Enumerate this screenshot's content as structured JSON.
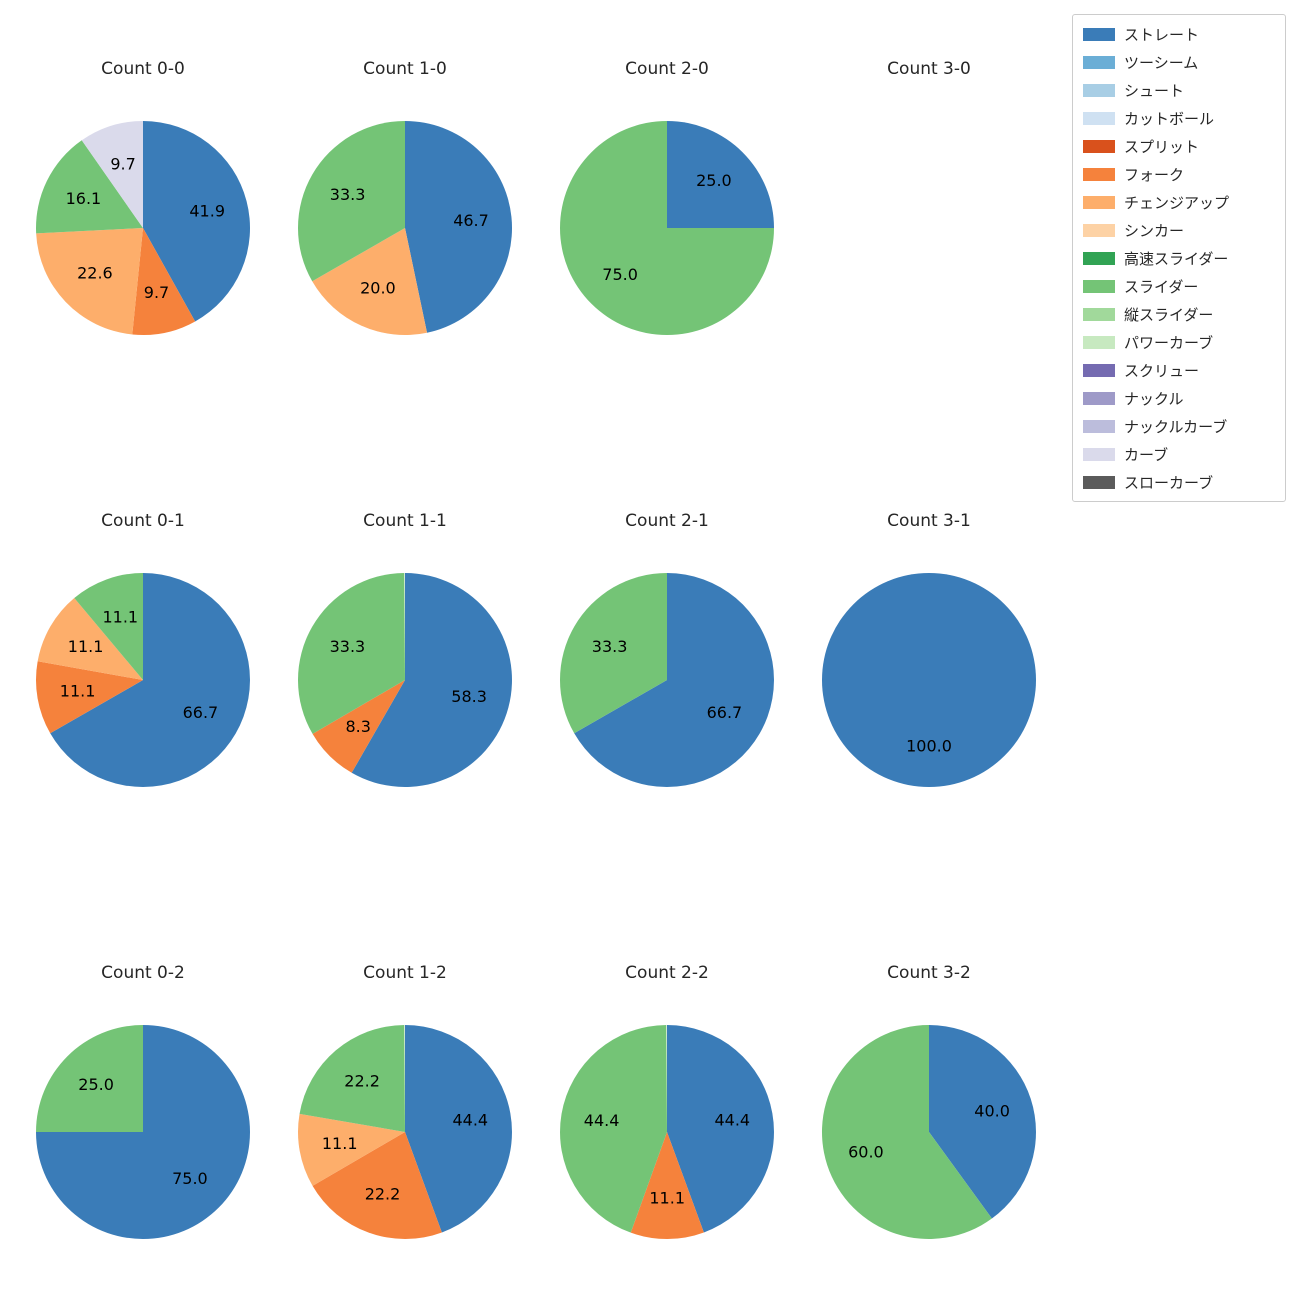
{
  "figure": {
    "background": "#ffffff"
  },
  "legend": {
    "items": [
      {
        "label": "ストレート",
        "color": "#3a7cb8"
      },
      {
        "label": "ツーシーム",
        "color": "#6baed6"
      },
      {
        "label": "シュート",
        "color": "#a8cee5"
      },
      {
        "label": "カットボール",
        "color": "#cfe1f2"
      },
      {
        "label": "スプリット",
        "color": "#d9511c"
      },
      {
        "label": "フォーク",
        "color": "#f5823c"
      },
      {
        "label": "チェンジアップ",
        "color": "#fdae6b"
      },
      {
        "label": "シンカー",
        "color": "#fdd2a5"
      },
      {
        "label": "高速スライダー",
        "color": "#31a354"
      },
      {
        "label": "スライダー",
        "color": "#74c476"
      },
      {
        "label": "縦スライダー",
        "color": "#a1d99b"
      },
      {
        "label": "パワーカーブ",
        "color": "#c7e9c0"
      },
      {
        "label": "スクリュー",
        "color": "#756bb1"
      },
      {
        "label": "ナックル",
        "color": "#9e9ac8"
      },
      {
        "label": "ナックルカーブ",
        "color": "#bcbddc"
      },
      {
        "label": "カーブ",
        "color": "#dadaeb"
      },
      {
        "label": "スローカーブ",
        "color": "#5b5b5b"
      }
    ]
  },
  "chart_data": [
    {
      "type": "pie",
      "title": "Count 0-0",
      "start_angle_deg": 90,
      "direction": "clockwise",
      "slices": [
        {
          "label": "ストレート",
          "value": 41.9
        },
        {
          "label": "フォーク",
          "value": 9.7
        },
        {
          "label": "チェンジアップ",
          "value": 22.6
        },
        {
          "label": "スライダー",
          "value": 16.1
        },
        {
          "label": "カーブ",
          "value": 9.7
        }
      ]
    },
    {
      "type": "pie",
      "title": "Count 1-0",
      "start_angle_deg": 90,
      "direction": "clockwise",
      "slices": [
        {
          "label": "ストレート",
          "value": 46.7
        },
        {
          "label": "チェンジアップ",
          "value": 20.0
        },
        {
          "label": "スライダー",
          "value": 33.3
        }
      ]
    },
    {
      "type": "pie",
      "title": "Count 2-0",
      "start_angle_deg": 90,
      "direction": "clockwise",
      "slices": [
        {
          "label": "ストレート",
          "value": 25.0
        },
        {
          "label": "スライダー",
          "value": 75.0
        }
      ]
    },
    {
      "type": "pie",
      "title": "Count 3-0",
      "start_angle_deg": 90,
      "direction": "clockwise",
      "slices": []
    },
    {
      "type": "pie",
      "title": "Count 0-1",
      "start_angle_deg": 90,
      "direction": "clockwise",
      "slices": [
        {
          "label": "ストレート",
          "value": 66.7
        },
        {
          "label": "フォーク",
          "value": 11.1
        },
        {
          "label": "チェンジアップ",
          "value": 11.1
        },
        {
          "label": "スライダー",
          "value": 11.1
        }
      ]
    },
    {
      "type": "pie",
      "title": "Count 1-1",
      "start_angle_deg": 90,
      "direction": "clockwise",
      "slices": [
        {
          "label": "ストレート",
          "value": 58.3
        },
        {
          "label": "フォーク",
          "value": 8.3
        },
        {
          "label": "スライダー",
          "value": 33.3
        }
      ]
    },
    {
      "type": "pie",
      "title": "Count 2-1",
      "start_angle_deg": 90,
      "direction": "clockwise",
      "slices": [
        {
          "label": "ストレート",
          "value": 66.7
        },
        {
          "label": "スライダー",
          "value": 33.3
        }
      ]
    },
    {
      "type": "pie",
      "title": "Count 3-1",
      "start_angle_deg": 90,
      "direction": "clockwise",
      "slices": [
        {
          "label": "ストレート",
          "value": 100.0
        }
      ]
    },
    {
      "type": "pie",
      "title": "Count 0-2",
      "start_angle_deg": 90,
      "direction": "clockwise",
      "slices": [
        {
          "label": "ストレート",
          "value": 75.0
        },
        {
          "label": "スライダー",
          "value": 25.0
        }
      ]
    },
    {
      "type": "pie",
      "title": "Count 1-2",
      "start_angle_deg": 90,
      "direction": "clockwise",
      "slices": [
        {
          "label": "ストレート",
          "value": 44.4
        },
        {
          "label": "フォーク",
          "value": 22.2
        },
        {
          "label": "チェンジアップ",
          "value": 11.1
        },
        {
          "label": "スライダー",
          "value": 22.2
        }
      ]
    },
    {
      "type": "pie",
      "title": "Count 2-2",
      "start_angle_deg": 90,
      "direction": "clockwise",
      "slices": [
        {
          "label": "ストレート",
          "value": 44.4
        },
        {
          "label": "フォーク",
          "value": 11.1
        },
        {
          "label": "スライダー",
          "value": 44.4
        }
      ]
    },
    {
      "type": "pie",
      "title": "Count 3-2",
      "start_angle_deg": 90,
      "direction": "clockwise",
      "slices": [
        {
          "label": "ストレート",
          "value": 40.0
        },
        {
          "label": "スライダー",
          "value": 60.0
        }
      ]
    }
  ]
}
